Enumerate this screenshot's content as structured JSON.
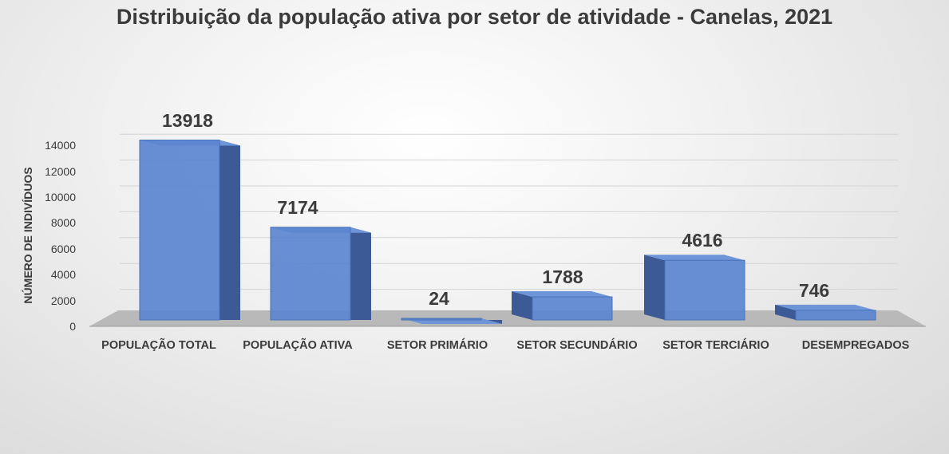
{
  "chart_data": {
    "type": "bar",
    "title": "Distribuição da população ativa por setor de atividade - Canelas, 2021",
    "ylabel": "NÚMERO DE INDIVÍDUOS",
    "xlabel": "",
    "categories": [
      "POPULAÇÃO TOTAL",
      "POPULAÇÃO ATIVA",
      "SETOR PRIMÁRIO",
      "SETOR SECUNDÁRIO",
      "SETOR TERCIÁRIO",
      "DESEMPREGADOS"
    ],
    "values": [
      13918,
      7174,
      24,
      1788,
      4616,
      746
    ],
    "data_labels": [
      "13918",
      "7174",
      "24",
      "1788",
      "4616",
      "746"
    ],
    "yticks": [
      "0",
      "2000",
      "4000",
      "6000",
      "8000",
      "10000",
      "12000",
      "14000"
    ],
    "ylim": [
      0,
      14000
    ],
    "grid": true,
    "legend": "none",
    "colors": {
      "bar_front": "#5b86cf",
      "bar_side": "#3c5a96",
      "bar_top": "#6e95d8",
      "floor": "#b9b9b9",
      "gridline": "#d4d4d4",
      "text": "#3b3b3b"
    }
  }
}
